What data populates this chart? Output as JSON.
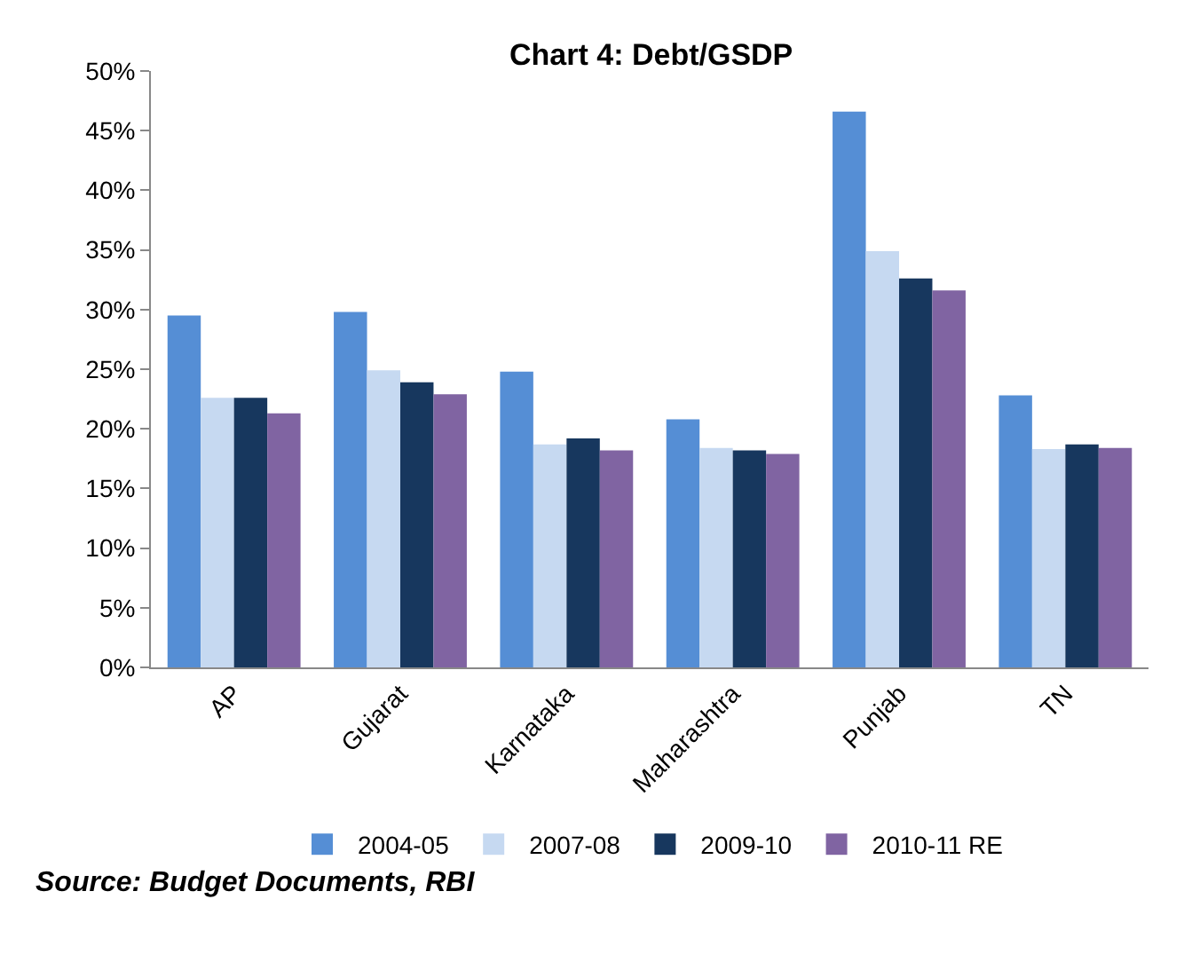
{
  "chart_data": {
    "type": "bar",
    "title": "Chart 4: Debt/GSDP",
    "categories": [
      "AP",
      "Gujarat",
      "Karnataka",
      "Maharashtra",
      "Punjab",
      "TN"
    ],
    "series": [
      {
        "name": "2004-05",
        "color": "#558ed5",
        "values": [
          29.5,
          29.8,
          24.8,
          20.8,
          46.6,
          22.8
        ]
      },
      {
        "name": "2007-08",
        "color": "#c6d9f1",
        "values": [
          22.6,
          24.9,
          18.7,
          18.4,
          34.9,
          18.3
        ]
      },
      {
        "name": "2009-10",
        "color": "#17375e",
        "values": [
          22.6,
          23.9,
          19.2,
          18.2,
          32.6,
          18.7
        ]
      },
      {
        "name": "2010-11 RE",
        "color": "#8064a2",
        "values": [
          21.3,
          22.9,
          18.2,
          17.9,
          31.6,
          18.4
        ]
      }
    ],
    "ylim": [
      0,
      50
    ],
    "yticks": [
      {
        "value": 0,
        "label": "0%"
      },
      {
        "value": 5,
        "label": "5%"
      },
      {
        "value": 10,
        "label": "10%"
      },
      {
        "value": 15,
        "label": "15%"
      },
      {
        "value": 20,
        "label": "20%"
      },
      {
        "value": 25,
        "label": "25%"
      },
      {
        "value": 30,
        "label": "30%"
      },
      {
        "value": 35,
        "label": "35%"
      },
      {
        "value": 40,
        "label": "40%"
      },
      {
        "value": 45,
        "label": "45%"
      },
      {
        "value": 50,
        "label": "50%"
      }
    ],
    "grid": false,
    "legend": "bottom",
    "annotations": [
      "Source: Budget Documents, RBI"
    ]
  }
}
